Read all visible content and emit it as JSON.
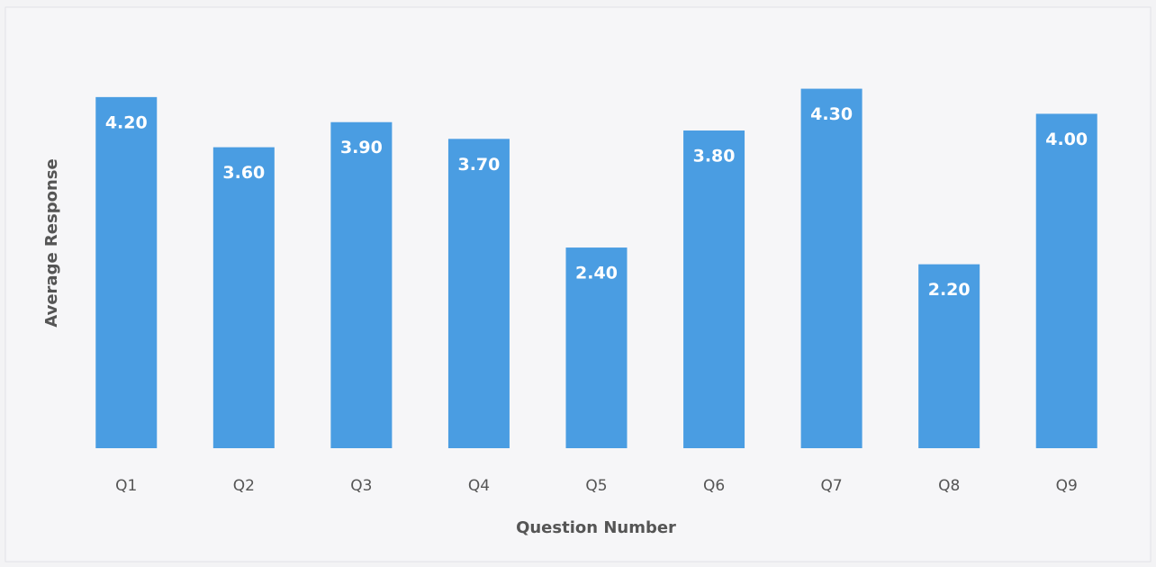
{
  "chart_data": {
    "type": "bar",
    "x_label": "Question Number",
    "y_label": "Average Response",
    "categories": [
      "Q1",
      "Q2",
      "Q3",
      "Q4",
      "Q5",
      "Q6",
      "Q7",
      "Q8",
      "Q9"
    ],
    "values": [
      4.2,
      3.6,
      3.9,
      3.7,
      2.4,
      3.8,
      4.3,
      2.2,
      4.0
    ],
    "value_labels": [
      "4.20",
      "3.60",
      "3.90",
      "3.70",
      "2.40",
      "3.80",
      "4.30",
      "2.20",
      "4.00"
    ],
    "color": "#4a9de2",
    "ylim": [
      0,
      4.5
    ]
  }
}
